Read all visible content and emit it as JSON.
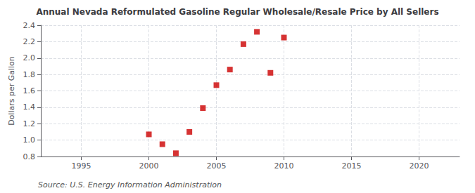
{
  "chart_data": {
    "type": "scatter",
    "title": "Annual Nevada Reformulated Gasoline Regular Wholesale/Resale Price by All Sellers",
    "ylabel": "Dollars per Gallon",
    "annotations": [
      "Source: U.S. Energy Information Administration"
    ],
    "x": [
      2000,
      2001,
      2002,
      2003,
      2004,
      2005,
      2006,
      2007,
      2008,
      2009,
      2010
    ],
    "values": [
      1.07,
      0.95,
      0.84,
      1.1,
      1.39,
      1.67,
      1.86,
      2.17,
      2.32,
      1.82,
      2.25
    ],
    "color": "#cc0000",
    "marker": "square",
    "xlim": [
      1992,
      2023
    ],
    "ylim": [
      0.8,
      2.4
    ],
    "xticks": [
      1995,
      2000,
      2005,
      2010,
      2015,
      2020
    ],
    "yticks": [
      0.8,
      {
        "value": 1.0,
        "label": "1.0"
      },
      1.2,
      1.4,
      1.6,
      1.8,
      {
        "value": 2.0,
        "label": "2.0"
      },
      2.2,
      2.4
    ],
    "grid": true
  }
}
